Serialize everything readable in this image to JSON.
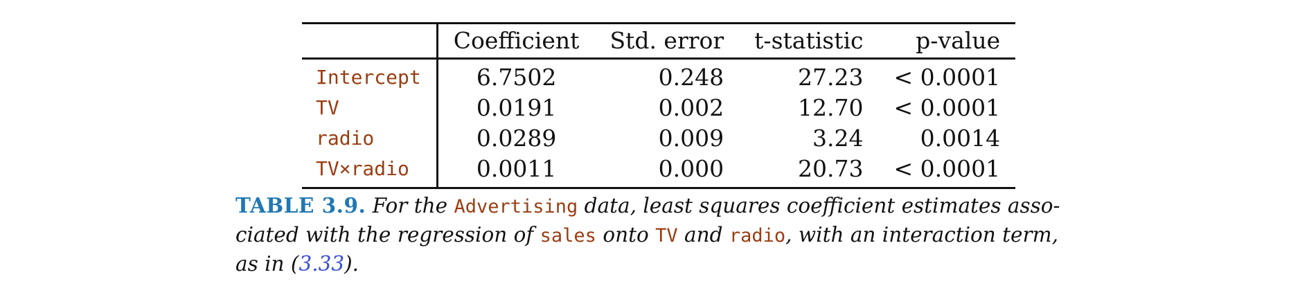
{
  "table": {
    "headers": [
      "",
      "Coefficient",
      "Std. error",
      "t-statistic",
      "p-value"
    ],
    "rows": [
      {
        "label": "Intercept",
        "coef": "6.7502",
        "se": "0.248",
        "t": "27.23",
        "p": "< 0.0001"
      },
      {
        "label": "TV",
        "coef": "0.0191",
        "se": "0.002",
        "t": "12.70",
        "p": "< 0.0001"
      },
      {
        "label": "radio",
        "coef": "0.0289",
        "se": "0.009",
        "t": "3.24",
        "p": "0.0014"
      },
      {
        "label": "TV×radio",
        "coef": "0.0011",
        "se": "0.000",
        "t": "20.73",
        "p": "< 0.0001"
      }
    ]
  },
  "caption": {
    "label": "TABLE 3.9.",
    "t1": "For the",
    "code1": "Advertising",
    "t2": "data, least squares coefficient estimates asso-",
    "t3": "ciated with the regression of",
    "code2": "sales",
    "t4": "onto",
    "code3": "TV",
    "t5": "and",
    "code4": "radio",
    "t6": ", with an interaction term,",
    "t7": "as in (",
    "ref": "3.33",
    "t8": ")."
  },
  "colors": {
    "code": "#9a3d12",
    "caption_label": "#1f78b4",
    "reference_link": "#3b4fd6"
  }
}
